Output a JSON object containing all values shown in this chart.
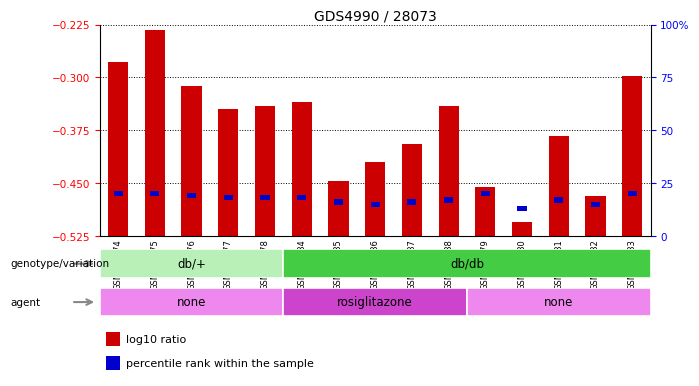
{
  "title": "GDS4990 / 28073",
  "samples": [
    "GSM904674",
    "GSM904675",
    "GSM904676",
    "GSM904677",
    "GSM904678",
    "GSM904684",
    "GSM904685",
    "GSM904686",
    "GSM904687",
    "GSM904688",
    "GSM904679",
    "GSM904680",
    "GSM904681",
    "GSM904682",
    "GSM904683"
  ],
  "log10_ratio": [
    -0.278,
    -0.232,
    -0.312,
    -0.345,
    -0.34,
    -0.335,
    -0.447,
    -0.42,
    -0.395,
    -0.34,
    -0.455,
    -0.505,
    -0.383,
    -0.468,
    -0.298
  ],
  "percentile_rank": [
    20,
    20,
    19,
    18,
    18,
    18,
    16,
    15,
    16,
    17,
    20,
    13,
    17,
    15,
    20
  ],
  "ylim_left": [
    -0.525,
    -0.225
  ],
  "ylim_right": [
    0,
    100
  ],
  "yticks_left": [
    -0.525,
    -0.45,
    -0.375,
    -0.3,
    -0.225
  ],
  "yticks_right": [
    0,
    25,
    50,
    75,
    100
  ],
  "bar_color": "#cc0000",
  "percentile_color": "#0000cc",
  "bg_color": "#ffffff",
  "genotype_groups": [
    {
      "label": "db/+",
      "start": 0,
      "end": 5,
      "color": "#b8f0b8"
    },
    {
      "label": "db/db",
      "start": 5,
      "end": 15,
      "color": "#44cc44"
    }
  ],
  "agent_groups": [
    {
      "label": "none",
      "start": 0,
      "end": 5,
      "color": "#ee88ee"
    },
    {
      "label": "rosiglitazone",
      "start": 5,
      "end": 10,
      "color": "#cc44cc"
    },
    {
      "label": "none",
      "start": 10,
      "end": 15,
      "color": "#ee88ee"
    }
  ],
  "legend_red_label": "log10 ratio",
  "legend_blue_label": "percentile rank within the sample"
}
